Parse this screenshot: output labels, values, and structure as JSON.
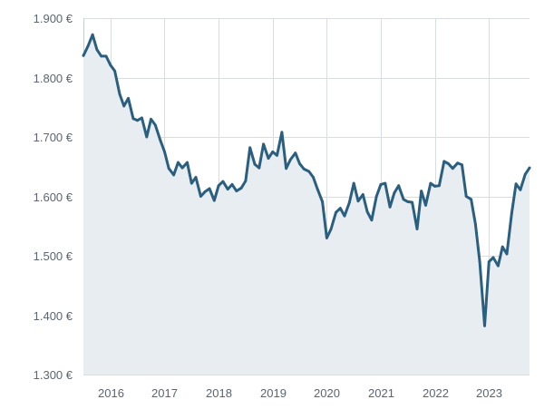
{
  "chart_data": {
    "type": "area",
    "title": "",
    "xlabel": "",
    "ylabel": "",
    "ylim": [
      1300,
      1900
    ],
    "xlim": [
      2015.5,
      2023.75
    ],
    "grid": {
      "x": true,
      "y": true
    },
    "legend": "none",
    "colors": {
      "line": "#2b5f7f",
      "fill": "#e8edf2",
      "grid": "#d9dde2",
      "tick_text": "#5b6470"
    },
    "y_ticks": [
      {
        "value": 1300,
        "label": "1.300 €"
      },
      {
        "value": 1400,
        "label": "1.400 €"
      },
      {
        "value": 1500,
        "label": "1.500 €"
      },
      {
        "value": 1600,
        "label": "1.600 €"
      },
      {
        "value": 1700,
        "label": "1.700 €"
      },
      {
        "value": 1800,
        "label": "1.800 €"
      },
      {
        "value": 1900,
        "label": "1.900 €"
      }
    ],
    "x_ticks": [
      {
        "value": 2016,
        "label": "2016"
      },
      {
        "value": 2017,
        "label": "2017"
      },
      {
        "value": 2018,
        "label": "2018"
      },
      {
        "value": 2019,
        "label": "2019"
      },
      {
        "value": 2020,
        "label": "2020"
      },
      {
        "value": 2021,
        "label": "2021"
      },
      {
        "value": 2022,
        "label": "2022"
      },
      {
        "value": 2023,
        "label": "2023"
      }
    ],
    "series": [
      {
        "x": [
          2015.5,
          2015.58,
          2015.67,
          2015.75,
          2015.83,
          2015.92,
          2016.0,
          2016.08,
          2016.17,
          2016.25,
          2016.33,
          2016.42,
          2016.5,
          2016.58,
          2016.67,
          2016.75,
          2016.83,
          2016.92,
          2017.0,
          2017.08,
          2017.17,
          2017.25,
          2017.33,
          2017.42,
          2017.5,
          2017.58,
          2017.67,
          2017.75,
          2017.83,
          2017.92,
          2018.0,
          2018.08,
          2018.17,
          2018.25,
          2018.33,
          2018.42,
          2018.5,
          2018.58,
          2018.67,
          2018.75,
          2018.83,
          2018.92,
          2019.0,
          2019.08,
          2019.17,
          2019.25,
          2019.33,
          2019.42,
          2019.5,
          2019.58,
          2019.67,
          2019.75,
          2019.83,
          2019.92,
          2020.0,
          2020.08,
          2020.17,
          2020.25,
          2020.33,
          2020.42,
          2020.5,
          2020.58,
          2020.67,
          2020.75,
          2020.83,
          2020.92,
          2021.0,
          2021.08,
          2021.17,
          2021.25,
          2021.33,
          2021.42,
          2021.5,
          2021.58,
          2021.67,
          2021.75,
          2021.83,
          2021.92,
          2022.0,
          2022.08,
          2022.17,
          2022.25,
          2022.33,
          2022.42,
          2022.5,
          2022.58,
          2022.67,
          2022.75,
          2022.83,
          2022.92,
          2023.0,
          2023.08,
          2023.17,
          2023.25,
          2023.33,
          2023.42,
          2023.5,
          2023.58,
          2023.67,
          2023.75
        ],
        "y": [
          1837,
          1852,
          1872,
          1847,
          1836,
          1836,
          1821,
          1811,
          1772,
          1752,
          1765,
          1731,
          1728,
          1732,
          1700,
          1730,
          1720,
          1695,
          1675,
          1647,
          1636,
          1657,
          1648,
          1657,
          1622,
          1632,
          1600,
          1608,
          1613,
          1593,
          1618,
          1625,
          1612,
          1620,
          1609,
          1614,
          1626,
          1682,
          1654,
          1648,
          1688,
          1664,
          1675,
          1669,
          1708,
          1647,
          1662,
          1673,
          1655,
          1646,
          1642,
          1632,
          1612,
          1591,
          1530,
          1545,
          1573,
          1580,
          1567,
          1590,
          1622,
          1592,
          1603,
          1574,
          1560,
          1600,
          1620,
          1622,
          1582,
          1606,
          1618,
          1595,
          1591,
          1590,
          1545,
          1609,
          1585,
          1622,
          1617,
          1618,
          1659,
          1655,
          1647,
          1656,
          1653,
          1600,
          1595,
          1553,
          1490,
          1382,
          1490,
          1497,
          1483,
          1515,
          1503,
          1571,
          1621,
          1611,
          1637,
          1648
        ]
      }
    ]
  }
}
